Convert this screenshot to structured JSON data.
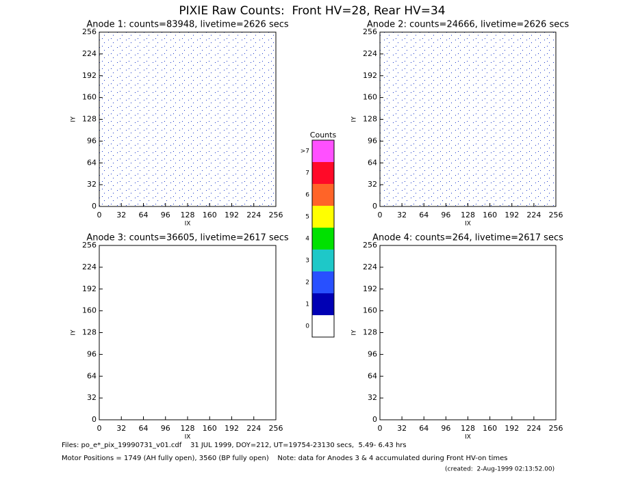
{
  "title": "PIXIE Raw Counts:  Front HV=28, Rear HV=34",
  "chart_data": [
    {
      "type": "heatmap",
      "title": "Anode 1: counts=83948, livetime=2626 secs",
      "xlabel": "IX",
      "ylabel": "IY",
      "xlim": [
        0,
        256
      ],
      "ylim": [
        0,
        256
      ],
      "xticks": [
        0,
        32,
        64,
        96,
        128,
        160,
        192,
        224,
        256
      ],
      "yticks": [
        0,
        32,
        64,
        96,
        128,
        160,
        192,
        224,
        256
      ]
    },
    {
      "type": "heatmap",
      "title": "Anode 2: counts=24666, livetime=2626 secs",
      "xlabel": "IX",
      "ylabel": "IY",
      "xlim": [
        0,
        256
      ],
      "ylim": [
        0,
        256
      ],
      "xticks": [
        0,
        32,
        64,
        96,
        128,
        160,
        192,
        224,
        256
      ],
      "yticks": [
        0,
        32,
        64,
        96,
        128,
        160,
        192,
        224,
        256
      ]
    },
    {
      "type": "heatmap",
      "title": "Anode 3: counts=36605, livetime=2617 secs",
      "xlabel": "IX",
      "ylabel": "IY",
      "xlim": [
        0,
        256
      ],
      "ylim": [
        0,
        256
      ],
      "xticks": [
        0,
        32,
        64,
        96,
        128,
        160,
        192,
        224,
        256
      ],
      "yticks": [
        0,
        32,
        64,
        96,
        128,
        160,
        192,
        224,
        256
      ]
    },
    {
      "type": "heatmap",
      "title": "Anode 4: counts=264, livetime=2617 secs",
      "xlabel": "IX",
      "ylabel": "IY",
      "xlim": [
        0,
        256
      ],
      "ylim": [
        0,
        256
      ],
      "xticks": [
        0,
        32,
        64,
        96,
        128,
        160,
        192,
        224,
        256
      ],
      "yticks": [
        0,
        32,
        64,
        96,
        128,
        160,
        192,
        224,
        256
      ]
    }
  ],
  "colorbar": {
    "title": "Counts",
    "levels": [
      0,
      1,
      2,
      3,
      4,
      5,
      6,
      7,
      {
        "value": 8,
        "label": ">7"
      }
    ],
    "colors": [
      "#ffffff",
      "#0000b4",
      "#2850ff",
      "#1ec8c8",
      "#00e100",
      "#ffff00",
      "#ff6428",
      "#ff0a28",
      "#ff50ff"
    ]
  },
  "footer": [
    "Files: po_e*_pix_19990731_v01.cdf    31 JUL 1999, DOY=212, UT=19754-23130 secs,  5.49- 6.43 hrs",
    "Motor Positions = 1749 (AH fully open), 3560 (BP fully open)    Note: data for Anodes 3 & 4 accumulated during Front HV-on times",
    "(created:  2-Aug-1999 02:13:52.00)"
  ]
}
